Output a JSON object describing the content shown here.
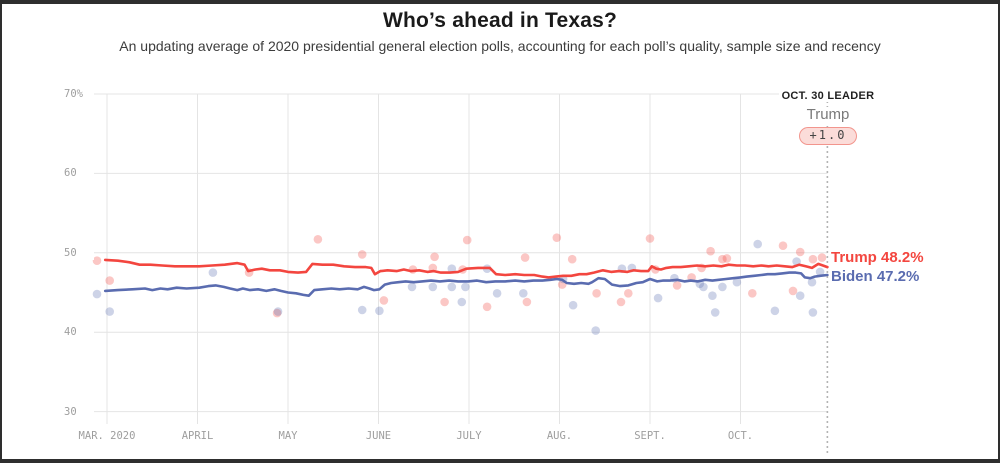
{
  "header": {
    "title": "Who’s ahead in Texas?",
    "subtitle": "An updating average of 2020 presidential general election polls, accounting for each poll’s quality, sample size and recency"
  },
  "annotation": {
    "label": "OCT. 30 LEADER",
    "leader_name": "Trump",
    "margin_badge": "+1.0"
  },
  "colors": {
    "trump": "#f3463f",
    "biden": "#5a6cb0",
    "grid": "#e4e4e4",
    "axis_text": "#9e9e9e",
    "current_date_line": "#b3b3b3",
    "badge_bg": "#fbdcd9",
    "badge_border": "#f2958d",
    "badge_text": "#444444",
    "leader_label_text": "#1f1f1f",
    "leader_name_text": "#7a7a7a",
    "frame_border": "#2e2e2e"
  },
  "chart_data": {
    "type": "line",
    "title": "Who’s ahead in Texas?",
    "xlabel": "",
    "ylabel": "",
    "ylim": [
      30,
      70
    ],
    "grid": true,
    "x_tick_labels": [
      "MAR. 2020",
      "APRIL",
      "MAY",
      "JUNE",
      "JULY",
      "AUG.",
      "SEPT.",
      "OCT."
    ],
    "y_ticks": [
      70,
      60,
      50,
      40,
      30
    ],
    "y_tick_labels": [
      "70%",
      "60",
      "50",
      "40",
      "30"
    ],
    "current_date_label": "OCT. 30",
    "current_t": 7.96,
    "series": [
      {
        "name": "Trump",
        "end_label": "Trump 48.2%",
        "end_value": 48.2,
        "color": "#f3463f",
        "points": [
          [
            -0.02,
            49.1
          ],
          [
            0.12,
            49.0
          ],
          [
            0.25,
            48.8
          ],
          [
            0.36,
            48.5
          ],
          [
            0.48,
            48.5
          ],
          [
            0.61,
            48.4
          ],
          [
            0.75,
            48.3
          ],
          [
            0.9,
            48.3
          ],
          [
            1.02,
            48.3
          ],
          [
            1.16,
            48.4
          ],
          [
            1.3,
            48.5
          ],
          [
            1.44,
            48.7
          ],
          [
            1.52,
            48.5
          ],
          [
            1.56,
            47.7
          ],
          [
            1.64,
            47.9
          ],
          [
            1.71,
            48.0
          ],
          [
            1.8,
            47.8
          ],
          [
            1.91,
            47.8
          ],
          [
            2.0,
            47.6
          ],
          [
            2.11,
            47.5
          ],
          [
            2.2,
            47.6
          ],
          [
            2.27,
            48.6
          ],
          [
            2.38,
            48.5
          ],
          [
            2.5,
            48.5
          ],
          [
            2.62,
            48.3
          ],
          [
            2.74,
            48.2
          ],
          [
            2.86,
            48.2
          ],
          [
            2.92,
            48.1
          ],
          [
            2.96,
            47.3
          ],
          [
            3.02,
            47.7
          ],
          [
            3.1,
            47.8
          ],
          [
            3.2,
            47.7
          ],
          [
            3.28,
            47.9
          ],
          [
            3.36,
            47.7
          ],
          [
            3.45,
            47.8
          ],
          [
            3.54,
            47.6
          ],
          [
            3.61,
            47.7
          ],
          [
            3.69,
            47.5
          ],
          [
            3.79,
            47.5
          ],
          [
            3.88,
            47.6
          ],
          [
            3.97,
            48.0
          ],
          [
            4.1,
            48.1
          ],
          [
            4.23,
            48.1
          ],
          [
            4.3,
            47.3
          ],
          [
            4.4,
            47.2
          ],
          [
            4.51,
            47.3
          ],
          [
            4.61,
            47.2
          ],
          [
            4.72,
            47.2
          ],
          [
            4.81,
            47.0
          ],
          [
            4.88,
            46.9
          ],
          [
            4.96,
            47.0
          ],
          [
            5.04,
            47.1
          ],
          [
            5.13,
            47.1
          ],
          [
            5.22,
            47.3
          ],
          [
            5.3,
            47.3
          ],
          [
            5.38,
            47.5
          ],
          [
            5.48,
            47.8
          ],
          [
            5.57,
            47.6
          ],
          [
            5.66,
            47.7
          ],
          [
            5.75,
            47.6
          ],
          [
            5.82,
            47.8
          ],
          [
            5.9,
            47.7
          ],
          [
            5.98,
            47.7
          ],
          [
            6.02,
            48.3
          ],
          [
            6.07,
            48.0
          ],
          [
            6.12,
            47.9
          ],
          [
            6.18,
            48.1
          ],
          [
            6.25,
            48.2
          ],
          [
            6.34,
            48.2
          ],
          [
            6.43,
            48.3
          ],
          [
            6.52,
            48.4
          ],
          [
            6.61,
            48.3
          ],
          [
            6.7,
            48.4
          ],
          [
            6.79,
            48.3
          ],
          [
            6.87,
            48.5
          ],
          [
            6.96,
            48.4
          ],
          [
            7.05,
            48.4
          ],
          [
            7.14,
            48.3
          ],
          [
            7.23,
            48.4
          ],
          [
            7.31,
            48.3
          ],
          [
            7.4,
            48.4
          ],
          [
            7.49,
            48.3
          ],
          [
            7.57,
            48.2
          ],
          [
            7.65,
            48.5
          ],
          [
            7.72,
            48.3
          ],
          [
            7.79,
            48.1
          ],
          [
            7.86,
            48.6
          ],
          [
            7.91,
            48.4
          ],
          [
            7.96,
            48.2
          ]
        ],
        "polls": [
          [
            -0.11,
            49.0
          ],
          [
            0.03,
            46.5
          ],
          [
            1.57,
            47.5
          ],
          [
            1.88,
            42.4
          ],
          [
            2.33,
            51.7
          ],
          [
            2.82,
            49.8
          ],
          [
            3.06,
            44.0
          ],
          [
            3.38,
            47.9
          ],
          [
            3.6,
            48.1
          ],
          [
            3.62,
            49.5
          ],
          [
            3.73,
            43.8
          ],
          [
            3.93,
            47.9
          ],
          [
            3.98,
            51.6
          ],
          [
            4.2,
            43.2
          ],
          [
            4.62,
            49.4
          ],
          [
            4.64,
            43.8
          ],
          [
            4.97,
            51.9
          ],
          [
            5.03,
            46.0
          ],
          [
            5.14,
            49.2
          ],
          [
            5.41,
            44.9
          ],
          [
            5.68,
            43.8
          ],
          [
            5.76,
            44.9
          ],
          [
            6.0,
            51.8
          ],
          [
            6.06,
            47.9
          ],
          [
            6.3,
            45.9
          ],
          [
            6.46,
            46.9
          ],
          [
            6.57,
            48.1
          ],
          [
            6.67,
            50.2
          ],
          [
            6.8,
            49.2
          ],
          [
            6.85,
            49.3
          ],
          [
            7.13,
            44.9
          ],
          [
            7.47,
            50.9
          ],
          [
            7.58,
            45.2
          ],
          [
            7.66,
            50.1
          ],
          [
            7.8,
            49.2
          ],
          [
            7.9,
            49.4
          ]
        ]
      },
      {
        "name": "Biden",
        "end_label": "Biden 47.2%",
        "end_value": 47.2,
        "color": "#5a6cb0",
        "points": [
          [
            -0.02,
            45.2
          ],
          [
            0.12,
            45.3
          ],
          [
            0.28,
            45.4
          ],
          [
            0.42,
            45.5
          ],
          [
            0.5,
            45.3
          ],
          [
            0.59,
            45.5
          ],
          [
            0.67,
            45.4
          ],
          [
            0.77,
            45.6
          ],
          [
            0.88,
            45.5
          ],
          [
            1.02,
            45.6
          ],
          [
            1.12,
            45.8
          ],
          [
            1.2,
            45.9
          ],
          [
            1.29,
            45.7
          ],
          [
            1.36,
            45.5
          ],
          [
            1.44,
            45.3
          ],
          [
            1.5,
            45.5
          ],
          [
            1.58,
            45.3
          ],
          [
            1.67,
            45.4
          ],
          [
            1.76,
            45.2
          ],
          [
            1.85,
            45.4
          ],
          [
            1.92,
            45.2
          ],
          [
            2.0,
            45.0
          ],
          [
            2.09,
            44.9
          ],
          [
            2.17,
            44.7
          ],
          [
            2.23,
            44.6
          ],
          [
            2.29,
            45.3
          ],
          [
            2.38,
            45.4
          ],
          [
            2.48,
            45.5
          ],
          [
            2.57,
            45.4
          ],
          [
            2.67,
            45.5
          ],
          [
            2.77,
            45.4
          ],
          [
            2.84,
            45.7
          ],
          [
            2.9,
            45.5
          ],
          [
            2.95,
            45.3
          ],
          [
            3.01,
            45.4
          ],
          [
            3.07,
            46.0
          ],
          [
            3.14,
            46.2
          ],
          [
            3.22,
            46.3
          ],
          [
            3.3,
            46.4
          ],
          [
            3.39,
            46.3
          ],
          [
            3.48,
            46.4
          ],
          [
            3.58,
            46.5
          ],
          [
            3.68,
            46.4
          ],
          [
            3.78,
            46.5
          ],
          [
            3.88,
            46.4
          ],
          [
            3.99,
            46.4
          ],
          [
            4.09,
            46.5
          ],
          [
            4.19,
            46.3
          ],
          [
            4.29,
            46.4
          ],
          [
            4.4,
            46.4
          ],
          [
            4.51,
            46.5
          ],
          [
            4.61,
            46.4
          ],
          [
            4.71,
            46.5
          ],
          [
            4.81,
            46.5
          ],
          [
            4.9,
            46.6
          ],
          [
            4.97,
            46.7
          ],
          [
            5.03,
            46.6
          ],
          [
            5.08,
            46.2
          ],
          [
            5.16,
            46.1
          ],
          [
            5.24,
            46.2
          ],
          [
            5.32,
            46.1
          ],
          [
            5.36,
            46.3
          ],
          [
            5.43,
            46.8
          ],
          [
            5.5,
            46.7
          ],
          [
            5.58,
            46.0
          ],
          [
            5.67,
            45.8
          ],
          [
            5.76,
            45.9
          ],
          [
            5.85,
            46.2
          ],
          [
            5.92,
            46.3
          ],
          [
            6.0,
            46.7
          ],
          [
            6.08,
            46.4
          ],
          [
            6.14,
            46.5
          ],
          [
            6.22,
            46.5
          ],
          [
            6.3,
            46.6
          ],
          [
            6.38,
            46.4
          ],
          [
            6.45,
            46.5
          ],
          [
            6.53,
            46.4
          ],
          [
            6.61,
            46.6
          ],
          [
            6.69,
            46.5
          ],
          [
            6.76,
            46.6
          ],
          [
            6.84,
            46.7
          ],
          [
            6.92,
            46.8
          ],
          [
            7.0,
            46.9
          ],
          [
            7.07,
            47.0
          ],
          [
            7.15,
            47.1
          ],
          [
            7.23,
            47.2
          ],
          [
            7.3,
            47.3
          ],
          [
            7.38,
            47.3
          ],
          [
            7.46,
            47.4
          ],
          [
            7.54,
            47.5
          ],
          [
            7.61,
            47.5
          ],
          [
            7.67,
            47.4
          ],
          [
            7.71,
            46.9
          ],
          [
            7.77,
            46.8
          ],
          [
            7.82,
            47.0
          ],
          [
            7.88,
            47.1
          ],
          [
            7.96,
            47.2
          ]
        ],
        "polls": [
          [
            -0.11,
            44.8
          ],
          [
            0.03,
            42.6
          ],
          [
            1.17,
            47.5
          ],
          [
            1.89,
            42.6
          ],
          [
            2.82,
            42.8
          ],
          [
            3.01,
            42.7
          ],
          [
            3.37,
            45.7
          ],
          [
            3.6,
            45.7
          ],
          [
            3.81,
            48.0
          ],
          [
            3.81,
            45.7
          ],
          [
            3.92,
            43.8
          ],
          [
            3.96,
            45.7
          ],
          [
            4.2,
            48.0
          ],
          [
            4.31,
            44.9
          ],
          [
            4.6,
            44.9
          ],
          [
            5.04,
            46.7
          ],
          [
            5.15,
            43.4
          ],
          [
            5.4,
            40.2
          ],
          [
            5.69,
            48.0
          ],
          [
            5.8,
            48.1
          ],
          [
            6.09,
            44.3
          ],
          [
            6.27,
            46.8
          ],
          [
            6.55,
            46.1
          ],
          [
            6.59,
            45.7
          ],
          [
            6.69,
            44.6
          ],
          [
            6.72,
            42.5
          ],
          [
            6.8,
            45.7
          ],
          [
            6.96,
            46.3
          ],
          [
            7.19,
            51.1
          ],
          [
            7.38,
            42.7
          ],
          [
            7.62,
            48.9
          ],
          [
            7.66,
            44.6
          ],
          [
            7.79,
            46.3
          ],
          [
            7.8,
            42.5
          ],
          [
            7.88,
            47.6
          ]
        ]
      }
    ]
  }
}
